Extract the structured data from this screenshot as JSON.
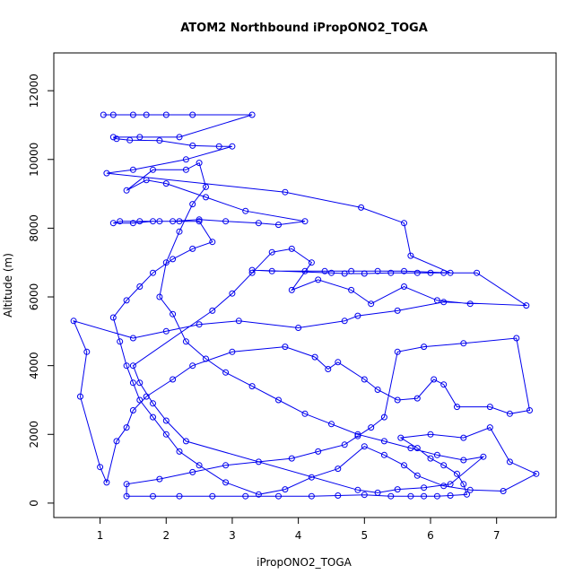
{
  "chart_data": {
    "type": "scatter",
    "title": "ATOM2 Northbound iPropONO2_TOGA",
    "xlabel": "iPropONO2_TOGA",
    "ylabel": "Altitude (m)",
    "xlim": [
      0.3,
      7.9
    ],
    "ylim": [
      -420,
      13100
    ],
    "x_ticks": [
      1,
      2,
      3,
      4,
      5,
      6,
      7
    ],
    "y_ticks": [
      0,
      2000,
      4000,
      6000,
      8000,
      10000,
      12000
    ],
    "grid": false,
    "legend": "none",
    "color": "#0000ee",
    "series": [
      {
        "points": [
          [
            1.05,
            11300
          ],
          [
            1.2,
            11300
          ],
          [
            1.5,
            11300
          ],
          [
            1.7,
            11300
          ],
          [
            2.0,
            11300
          ],
          [
            2.4,
            11300
          ],
          [
            3.3,
            11300
          ],
          [
            2.2,
            10650
          ],
          [
            1.6,
            10650
          ],
          [
            1.2,
            10650
          ],
          [
            1.25,
            10600
          ],
          [
            1.45,
            10560
          ],
          [
            1.9,
            10550
          ],
          [
            2.4,
            10400
          ],
          [
            2.8,
            10380
          ],
          [
            3.0,
            10380
          ],
          [
            2.3,
            10000
          ],
          [
            1.5,
            9700
          ],
          [
            1.1,
            9600
          ],
          [
            3.8,
            9050
          ],
          [
            4.95,
            8600
          ],
          [
            5.6,
            8150
          ],
          [
            5.7,
            7200
          ],
          [
            6.3,
            6700
          ],
          [
            5.6,
            6750
          ],
          [
            5.2,
            6750
          ],
          [
            4.8,
            6750
          ],
          [
            4.4,
            6750
          ],
          [
            4.1,
            6750
          ],
          [
            3.6,
            6750
          ],
          [
            3.3,
            6780
          ],
          [
            4.5,
            6700
          ],
          [
            4.7,
            6680
          ],
          [
            5.0,
            6680
          ],
          [
            5.4,
            6700
          ],
          [
            5.8,
            6700
          ],
          [
            6.0,
            6700
          ],
          [
            6.2,
            6700
          ],
          [
            6.7,
            6700
          ],
          [
            7.45,
            5750
          ],
          [
            6.2,
            5850
          ],
          [
            5.5,
            5600
          ],
          [
            4.9,
            5450
          ],
          [
            4.7,
            5300
          ],
          [
            4.0,
            5100
          ],
          [
            3.1,
            5300
          ],
          [
            2.5,
            5200
          ],
          [
            2.0,
            5000
          ],
          [
            1.5,
            4800
          ],
          [
            0.6,
            5300
          ],
          [
            0.8,
            4400
          ],
          [
            0.7,
            3100
          ],
          [
            1.0,
            1050
          ],
          [
            1.1,
            600
          ],
          [
            1.25,
            1800
          ],
          [
            1.4,
            2200
          ],
          [
            1.5,
            2700
          ],
          [
            1.7,
            3100
          ],
          [
            2.1,
            3600
          ],
          [
            2.4,
            4000
          ],
          [
            3.0,
            4400
          ],
          [
            3.8,
            4550
          ],
          [
            4.25,
            4250
          ],
          [
            4.45,
            3900
          ],
          [
            4.6,
            4100
          ],
          [
            5.0,
            3600
          ],
          [
            5.2,
            3300
          ],
          [
            5.5,
            3000
          ],
          [
            5.8,
            3050
          ],
          [
            6.05,
            3600
          ],
          [
            6.2,
            3450
          ],
          [
            6.4,
            2800
          ],
          [
            6.9,
            2800
          ],
          [
            7.2,
            2600
          ],
          [
            7.5,
            2700
          ],
          [
            7.3,
            4800
          ],
          [
            6.5,
            4650
          ],
          [
            5.9,
            4550
          ],
          [
            5.5,
            4400
          ],
          [
            5.3,
            2500
          ],
          [
            5.1,
            2200
          ],
          [
            4.9,
            1950
          ],
          [
            4.7,
            1700
          ],
          [
            4.3,
            1500
          ],
          [
            3.9,
            1300
          ],
          [
            3.4,
            1200
          ],
          [
            2.9,
            1100
          ],
          [
            2.4,
            900
          ],
          [
            1.9,
            700
          ],
          [
            1.4,
            550
          ],
          [
            1.4,
            200
          ],
          [
            1.8,
            200
          ],
          [
            2.2,
            200
          ],
          [
            2.7,
            200
          ],
          [
            3.2,
            200
          ],
          [
            3.7,
            200
          ],
          [
            4.2,
            200
          ],
          [
            4.6,
            220
          ],
          [
            5.0,
            240
          ],
          [
            5.4,
            200
          ],
          [
            5.7,
            200
          ],
          [
            5.9,
            200
          ],
          [
            6.1,
            200
          ],
          [
            6.3,
            220
          ],
          [
            6.55,
            250
          ],
          [
            6.5,
            550
          ],
          [
            6.4,
            850
          ],
          [
            6.2,
            1100
          ],
          [
            6.0,
            1300
          ],
          [
            5.8,
            1600
          ],
          [
            5.55,
            1900
          ],
          [
            6.0,
            2000
          ],
          [
            6.5,
            1900
          ],
          [
            6.9,
            2200
          ],
          [
            7.2,
            1200
          ],
          [
            7.6,
            850
          ],
          [
            7.1,
            350
          ],
          [
            6.6,
            380
          ],
          [
            6.2,
            500
          ],
          [
            5.8,
            800
          ],
          [
            5.6,
            1100
          ],
          [
            5.3,
            1400
          ],
          [
            5.0,
            1650
          ],
          [
            4.6,
            1000
          ],
          [
            4.2,
            750
          ],
          [
            3.8,
            400
          ],
          [
            3.4,
            250
          ],
          [
            2.9,
            600
          ],
          [
            2.5,
            1100
          ],
          [
            2.2,
            1500
          ],
          [
            2.0,
            2000
          ],
          [
            1.8,
            2500
          ],
          [
            1.6,
            3000
          ],
          [
            1.5,
            3500
          ],
          [
            1.4,
            4000
          ],
          [
            1.3,
            4700
          ],
          [
            1.2,
            5400
          ],
          [
            1.4,
            5900
          ],
          [
            1.6,
            6300
          ],
          [
            1.8,
            6700
          ],
          [
            2.1,
            7100
          ],
          [
            2.4,
            7400
          ],
          [
            2.7,
            7600
          ],
          [
            2.5,
            8200
          ],
          [
            2.2,
            8200
          ],
          [
            1.9,
            8200
          ],
          [
            1.6,
            8200
          ],
          [
            1.3,
            8200
          ],
          [
            1.2,
            8150
          ],
          [
            1.5,
            8150
          ],
          [
            1.8,
            8200
          ],
          [
            2.1,
            8200
          ],
          [
            2.5,
            8250
          ],
          [
            2.9,
            8200
          ],
          [
            3.4,
            8150
          ],
          [
            3.7,
            8100
          ],
          [
            4.1,
            8200
          ],
          [
            3.2,
            8500
          ],
          [
            2.6,
            8900
          ],
          [
            2.0,
            9300
          ],
          [
            1.7,
            9400
          ],
          [
            1.4,
            9100
          ],
          [
            1.8,
            9700
          ],
          [
            2.3,
            9700
          ],
          [
            2.5,
            9900
          ],
          [
            2.6,
            9200
          ],
          [
            2.4,
            8700
          ],
          [
            2.2,
            7900
          ],
          [
            2.0,
            7000
          ],
          [
            1.9,
            6000
          ],
          [
            2.1,
            5500
          ],
          [
            2.3,
            4700
          ],
          [
            2.6,
            4200
          ],
          [
            2.9,
            3800
          ],
          [
            3.3,
            3400
          ],
          [
            3.7,
            3000
          ],
          [
            4.1,
            2600
          ],
          [
            4.5,
            2300
          ],
          [
            4.9,
            2000
          ],
          [
            5.3,
            1800
          ],
          [
            5.7,
            1600
          ],
          [
            6.1,
            1400
          ],
          [
            6.5,
            1250
          ],
          [
            6.8,
            1350
          ],
          [
            6.3,
            550
          ],
          [
            5.9,
            450
          ],
          [
            5.5,
            400
          ],
          [
            5.2,
            300
          ],
          [
            4.9,
            380
          ],
          [
            2.3,
            1800
          ],
          [
            2.0,
            2400
          ],
          [
            1.8,
            2900
          ],
          [
            1.6,
            3500
          ],
          [
            1.5,
            4000
          ],
          [
            2.7,
            5600
          ],
          [
            3.0,
            6100
          ],
          [
            3.3,
            6700
          ],
          [
            3.6,
            7300
          ],
          [
            3.9,
            7400
          ],
          [
            4.2,
            7000
          ],
          [
            3.9,
            6200
          ],
          [
            4.3,
            6500
          ],
          [
            4.8,
            6200
          ],
          [
            5.1,
            5800
          ],
          [
            5.6,
            6300
          ],
          [
            6.1,
            5900
          ],
          [
            6.6,
            5800
          ]
        ]
      }
    ]
  }
}
